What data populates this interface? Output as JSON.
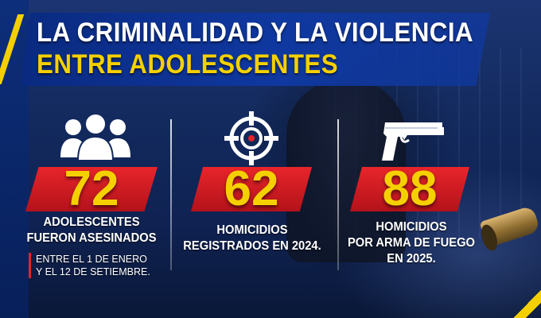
{
  "title": {
    "line1": "LA CRIMINALIDAD Y LA VIOLENCIA",
    "line2": "ENTRE ADOLESCENTES"
  },
  "stats": [
    {
      "icon": "people-group-icon",
      "number": "72",
      "label_line1": "ADOLESCENTES",
      "label_line2": "FUERON ASESINADOS",
      "note_line1": "ENTRE EL 1 DE ENERO",
      "note_line2": "Y EL 12 DE SETIEMBRE."
    },
    {
      "icon": "crosshair-target-icon",
      "number": "62",
      "label_line1": "HOMICIDIOS",
      "label_line2": "REGISTRADOS EN 2024."
    },
    {
      "icon": "handgun-icon",
      "number": "88",
      "label_line1": "HOMICIDIOS",
      "label_line2": "POR ARMA DE FUEGO",
      "label_line3": "EN 2025."
    }
  ],
  "colors": {
    "accent_yellow": "#f5d000",
    "banner_red": "#e3232a",
    "title_band_blue": "#0f38a0",
    "background_navy": "#132a5e"
  }
}
